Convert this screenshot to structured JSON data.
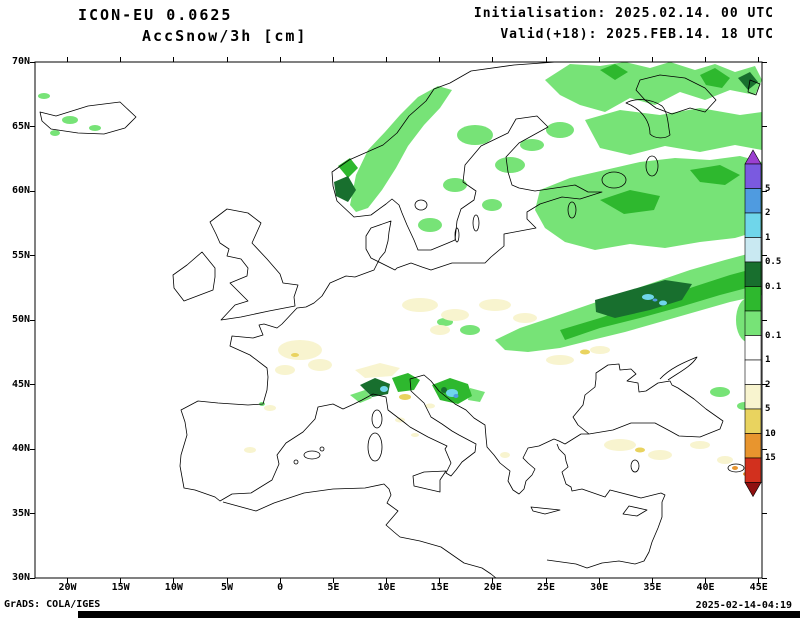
{
  "header": {
    "model_line": "ICON-EU 0.0625",
    "variable_line": "AccSnow/3h [cm]",
    "init_line": "Initialisation: 2025.02.14. 00 UTC",
    "valid_line": "Valid(+18): 2025.FEB.14. 18 UTC"
  },
  "footer": {
    "credit": "GrADS: COLA/IGES",
    "timestamp": "2025-02-14-04:19"
  },
  "map": {
    "lat_labels": [
      "70N",
      "65N",
      "60N",
      "55N",
      "50N",
      "45N",
      "40N",
      "35N",
      "30N"
    ],
    "lon_labels": [
      "20W",
      "15W",
      "10W",
      "5W",
      "0",
      "5E",
      "10E",
      "15E",
      "20E",
      "25E",
      "30E",
      "35E",
      "40E",
      "45E"
    ]
  },
  "colorbar": {
    "arrow_top_color": "#9b3fd0",
    "segments": [
      "#7a5ae0",
      "#4f9be0",
      "#6fd6ea",
      "#c9e9f2",
      "#186f2e",
      "#2eb82e",
      "#77e377",
      "#ffffff",
      "#ffffff",
      "#f8f4cf",
      "#e9d35f",
      "#e8952e",
      "#d2301e"
    ],
    "arrow_bottom_color": "#8f1010",
    "labels": [
      "5",
      "2",
      "1",
      "0.5",
      "0.1",
      "0.1",
      "1",
      "2",
      "5",
      "10",
      "15"
    ]
  }
}
